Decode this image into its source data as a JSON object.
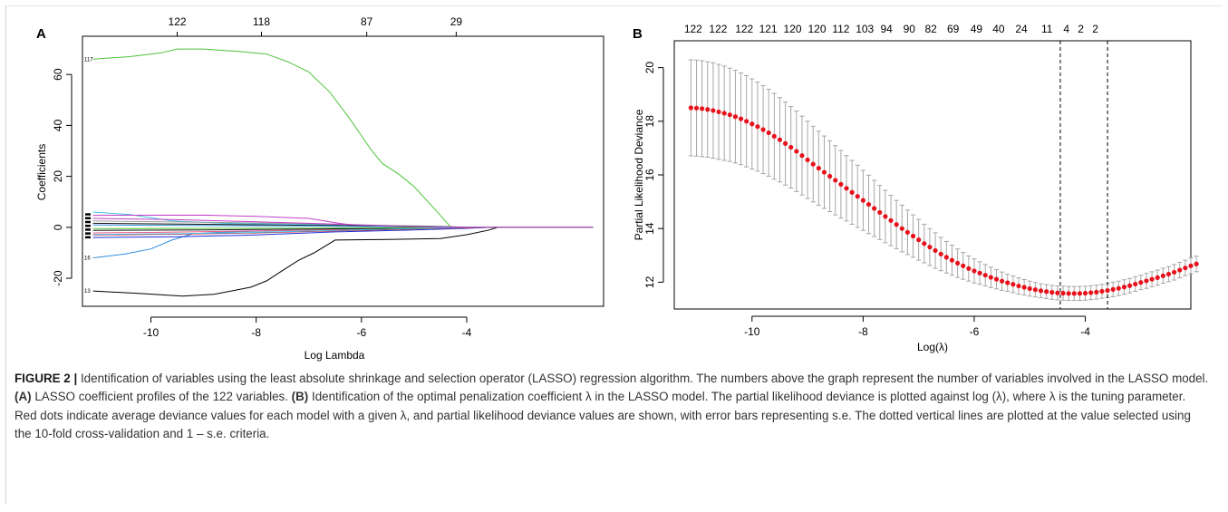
{
  "figure": {
    "caption_label": "FIGURE 2 |",
    "caption_parts": [
      {
        "text": " Identification of variables using the least absolute shrinkage and selection operator (LASSO) regression algorithm. The numbers above the graph represent the number of variables involved in the LASSO model. ",
        "bold": false
      },
      {
        "text": "(A)",
        "bold": true
      },
      {
        "text": " LASSO coefficient profiles of the 122 variables. ",
        "bold": false
      },
      {
        "text": "(B)",
        "bold": true
      },
      {
        "text": " Identification of the optimal penalization coefficient λ in the LASSO model. The partial likelihood deviance is plotted against log (λ), where λ is the tuning parameter. Red dots indicate average deviance values for each model with a given λ, and partial likelihood deviance values are shown, with error bars representing s.e. The dotted vertical lines are plotted at the value selected using the 10-fold cross-validation and 1 – s.e. criteria.",
        "bold": false
      }
    ]
  },
  "colors": {
    "dot_red": "#e8111b",
    "errorbar_gray": "#a6a6a6",
    "axis": "#000000",
    "caption_text": "#333333"
  },
  "chart_data": [
    {
      "panel": "A",
      "type": "line",
      "xlabel": "Log Lambda",
      "ylabel": "Coefficients",
      "xlim": [
        -11.3,
        -1.4
      ],
      "ylim": [
        -31,
        75
      ],
      "x_ticks": [
        -10,
        -8,
        -6,
        -4
      ],
      "y_ticks": [
        -20,
        0,
        20,
        40,
        60
      ],
      "top_ticks": [
        {
          "x": -9.5,
          "label": "122"
        },
        {
          "x": -7.9,
          "label": "118"
        },
        {
          "x": -5.9,
          "label": "87"
        },
        {
          "x": -4.2,
          "label": "29"
        }
      ],
      "side_labels": [
        {
          "y": 66,
          "label": "117"
        },
        {
          "y": -12,
          "label": "16"
        },
        {
          "y": -25,
          "label": "13"
        }
      ],
      "series": [
        {
          "color": "#4ec33a",
          "points": [
            [
              -11.1,
              66
            ],
            [
              -10.4,
              67
            ],
            [
              -9.8,
              68.5
            ],
            [
              -9.5,
              70
            ],
            [
              -9.0,
              70
            ],
            [
              -8.3,
              69
            ],
            [
              -7.8,
              68
            ],
            [
              -7.4,
              65
            ],
            [
              -7.0,
              61
            ],
            [
              -6.6,
              53
            ],
            [
              -6.2,
              42
            ],
            [
              -5.8,
              30
            ],
            [
              -5.6,
              25
            ],
            [
              -5.3,
              21
            ],
            [
              -5.0,
              16
            ],
            [
              -4.6,
              7
            ],
            [
              -4.3,
              0
            ],
            [
              -1.6,
              0
            ]
          ]
        },
        {
          "color": "#000000",
          "points": [
            [
              -11.1,
              -25
            ],
            [
              -10.2,
              -26
            ],
            [
              -9.4,
              -27
            ],
            [
              -8.8,
              -26.3
            ],
            [
              -8.1,
              -23.5
            ],
            [
              -7.8,
              -21
            ],
            [
              -7.5,
              -17
            ],
            [
              -7.2,
              -13
            ],
            [
              -6.9,
              -10
            ],
            [
              -6.5,
              -5
            ],
            [
              -5.5,
              -4.8
            ],
            [
              -4.5,
              -4.4
            ],
            [
              -4.0,
              -2.9
            ],
            [
              -3.6,
              -1.2
            ],
            [
              -3.4,
              0
            ],
            [
              -1.6,
              0
            ]
          ]
        },
        {
          "color": "#2f8ddc",
          "points": [
            [
              -11.1,
              -12
            ],
            [
              -10.5,
              -10.5
            ],
            [
              -10.0,
              -8.5
            ],
            [
              -9.6,
              -5
            ],
            [
              -9.2,
              -2.5
            ],
            [
              -8.5,
              -1.8
            ],
            [
              -7.0,
              -1
            ],
            [
              -6.0,
              -0.5
            ],
            [
              -4.5,
              0
            ],
            [
              -1.6,
              0
            ]
          ]
        },
        {
          "color": "#3fc6e8",
          "points": [
            [
              -11.1,
              6
            ],
            [
              -10.4,
              5
            ],
            [
              -9.6,
              2.5
            ],
            [
              -8.6,
              1.6
            ],
            [
              -7.0,
              1.2
            ],
            [
              -6.0,
              0.5
            ],
            [
              -4.5,
              0
            ],
            [
              -1.6,
              0
            ]
          ]
        },
        {
          "color": "#c23fc6",
          "points": [
            [
              -11.1,
              4.7
            ],
            [
              -9.0,
              4.8
            ],
            [
              -8.0,
              4.3
            ],
            [
              -7.0,
              3.5
            ],
            [
              -6.4,
              1.5
            ],
            [
              -6.0,
              0.6
            ],
            [
              -4.5,
              0
            ],
            [
              -1.6,
              0
            ]
          ]
        },
        {
          "color": "#1c2fd9",
          "points": [
            [
              -11.1,
              -4
            ],
            [
              -9.5,
              -3.7
            ],
            [
              -8.0,
              -3.0
            ],
            [
              -6.5,
              -1.8
            ],
            [
              -5.0,
              -1.0
            ],
            [
              -4.0,
              -0.4
            ],
            [
              -3.5,
              0
            ],
            [
              -1.6,
              0
            ]
          ]
        },
        {
          "color": "#ea5a88",
          "points": [
            [
              -11.1,
              -2.2
            ],
            [
              -10.0,
              -2.0
            ],
            [
              -8.5,
              -1.6
            ],
            [
              -7.0,
              -1.1
            ],
            [
              -5.5,
              -0.6
            ],
            [
              -4.0,
              -0.2
            ],
            [
              -3.6,
              0
            ],
            [
              -1.6,
              0
            ]
          ]
        },
        {
          "color": "#9c9c9c",
          "points": [
            [
              -11.1,
              2.5
            ],
            [
              -9.0,
              2.0
            ],
            [
              -7.0,
              1.4
            ],
            [
              -5.0,
              0.6
            ],
            [
              -4.0,
              0
            ],
            [
              -1.6,
              0
            ]
          ]
        },
        {
          "color": "#111111",
          "points": [
            [
              -11.1,
              1.6
            ],
            [
              -9.0,
              1.2
            ],
            [
              -7.0,
              0.8
            ],
            [
              -5.0,
              0.4
            ],
            [
              -3.8,
              0
            ],
            [
              -1.6,
              0
            ]
          ]
        },
        {
          "color": "#111111",
          "points": [
            [
              -11.1,
              -1.2
            ],
            [
              -9.0,
              -1.0
            ],
            [
              -7.0,
              -0.7
            ],
            [
              -5.0,
              -0.3
            ],
            [
              -3.8,
              0
            ],
            [
              -1.6,
              0
            ]
          ]
        },
        {
          "color": "#2f8ddc",
          "points": [
            [
              -11.1,
              0.9
            ],
            [
              -9.0,
              0.7
            ],
            [
              -7.0,
              0.5
            ],
            [
              -5.0,
              0.2
            ],
            [
              -4.0,
              0
            ],
            [
              -1.6,
              0
            ]
          ]
        },
        {
          "color": "#4ec33a",
          "points": [
            [
              -11.1,
              -0.5
            ],
            [
              -9.0,
              -0.4
            ],
            [
              -7.0,
              -0.3
            ],
            [
              -5.0,
              -0.1
            ],
            [
              -4.0,
              0
            ],
            [
              -1.6,
              0
            ]
          ]
        },
        {
          "color": "#e8111b",
          "points": [
            [
              -11.1,
              -3.0
            ],
            [
              -9.5,
              -2.7
            ],
            [
              -8.0,
              -2.2
            ],
            [
              -6.5,
              -1.4
            ],
            [
              -5.0,
              -0.7
            ],
            [
              -3.9,
              -0.1
            ],
            [
              -3.0,
              0
            ],
            [
              -1.6,
              0
            ]
          ]
        },
        {
          "color": "#3fc6e8",
          "points": [
            [
              -11.1,
              -2.8
            ],
            [
              -9.5,
              -2.5
            ],
            [
              -8.0,
              -2.0
            ],
            [
              -6.5,
              -1.2
            ],
            [
              -5.0,
              -0.5
            ],
            [
              -4.0,
              0
            ],
            [
              -1.6,
              0
            ]
          ]
        },
        {
          "color": "#c23fc6",
          "points": [
            [
              -11.1,
              3.5
            ],
            [
              -9.5,
              3.0
            ],
            [
              -8.0,
              2.2
            ],
            [
              -6.5,
              1.3
            ],
            [
              -5.5,
              0.5
            ],
            [
              -4.5,
              0
            ],
            [
              -1.6,
              0
            ]
          ]
        }
      ]
    },
    {
      "panel": "B",
      "type": "scatter",
      "xlabel": "Log(λ)",
      "ylabel": "Partial Likelihood Deviance",
      "xlim": [
        -11.4,
        -2.1
      ],
      "ylim": [
        11.0,
        21.0
      ],
      "x_ticks": [
        -10,
        -8,
        -6,
        -4
      ],
      "y_ticks": [
        12,
        14,
        16,
        18,
        20
      ],
      "vlines": [
        -4.45,
        -3.6
      ],
      "top_ticks": [
        {
          "x": -11.06,
          "label": "122"
        },
        {
          "x": -10.61,
          "label": "122"
        },
        {
          "x": -10.14,
          "label": "122"
        },
        {
          "x": -9.71,
          "label": "121"
        },
        {
          "x": -9.27,
          "label": "120"
        },
        {
          "x": -8.83,
          "label": "120"
        },
        {
          "x": -8.4,
          "label": "112"
        },
        {
          "x": -7.97,
          "label": "103"
        },
        {
          "x": -7.58,
          "label": "94"
        },
        {
          "x": -7.17,
          "label": "90"
        },
        {
          "x": -6.78,
          "label": "82"
        },
        {
          "x": -6.38,
          "label": "69"
        },
        {
          "x": -5.96,
          "label": "49"
        },
        {
          "x": -5.56,
          "label": "40"
        },
        {
          "x": -5.15,
          "label": "24"
        },
        {
          "x": -4.69,
          "label": "11"
        },
        {
          "x": -4.34,
          "label": "4"
        },
        {
          "x": -4.08,
          "label": "2"
        },
        {
          "x": -3.82,
          "label": "2"
        }
      ],
      "x_start": -11.1,
      "x_step": 0.1,
      "mean": [
        18.5,
        18.49,
        18.47,
        18.44,
        18.4,
        18.35,
        18.3,
        18.24,
        18.17,
        18.09,
        18.0,
        17.9,
        17.8,
        17.69,
        17.57,
        17.44,
        17.31,
        17.17,
        17.03,
        16.88,
        16.72,
        16.56,
        16.4,
        16.25,
        16.1,
        15.95,
        15.8,
        15.65,
        15.5,
        15.35,
        15.2,
        15.05,
        14.9,
        14.75,
        14.6,
        14.45,
        14.3,
        14.15,
        14.0,
        13.86,
        13.72,
        13.58,
        13.44,
        13.31,
        13.18,
        13.05,
        12.93,
        12.82,
        12.71,
        12.61,
        12.51,
        12.42,
        12.34,
        12.26,
        12.18,
        12.11,
        12.04,
        11.98,
        11.92,
        11.86,
        11.81,
        11.76,
        11.72,
        11.68,
        11.65,
        11.62,
        11.6,
        11.59,
        11.58,
        11.58,
        11.58,
        11.59,
        11.61,
        11.63,
        11.66,
        11.69,
        11.73,
        11.77,
        11.82,
        11.87,
        11.93,
        11.99,
        12.05,
        12.11,
        12.17,
        12.24,
        12.3,
        12.37,
        12.45,
        12.53,
        12.61,
        12.68
      ],
      "se": [
        1.79,
        1.79,
        1.79,
        1.78,
        1.78,
        1.77,
        1.76,
        1.74,
        1.73,
        1.71,
        1.7,
        1.68,
        1.66,
        1.64,
        1.62,
        1.6,
        1.57,
        1.55,
        1.52,
        1.5,
        1.47,
        1.44,
        1.41,
        1.38,
        1.35,
        1.32,
        1.29,
        1.26,
        1.22,
        1.19,
        1.16,
        1.12,
        1.09,
        1.05,
        1.01,
        0.98,
        0.94,
        0.9,
        0.87,
        0.83,
        0.79,
        0.76,
        0.72,
        0.69,
        0.66,
        0.62,
        0.59,
        0.56,
        0.53,
        0.5,
        0.47,
        0.45,
        0.42,
        0.4,
        0.38,
        0.36,
        0.34,
        0.32,
        0.31,
        0.3,
        0.29,
        0.28,
        0.27,
        0.26,
        0.26,
        0.26,
        0.26,
        0.26,
        0.26,
        0.26,
        0.26,
        0.26,
        0.26,
        0.26,
        0.26,
        0.26,
        0.27,
        0.27,
        0.27,
        0.27,
        0.27,
        0.27,
        0.28,
        0.28,
        0.28,
        0.28,
        0.28,
        0.29,
        0.29,
        0.29,
        0.29,
        0.29
      ]
    }
  ]
}
